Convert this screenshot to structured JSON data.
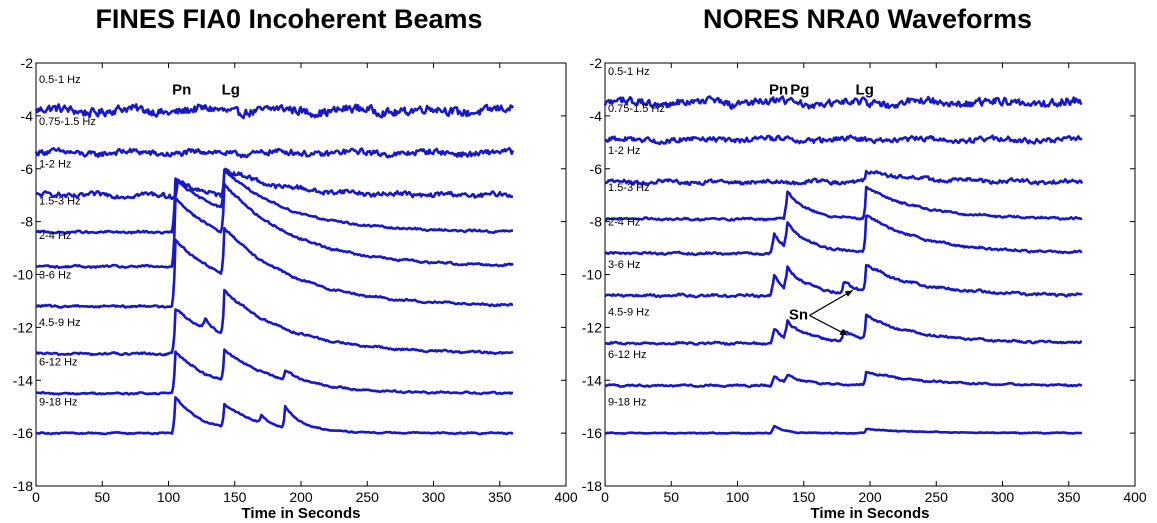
{
  "chart_data": [
    {
      "type": "line",
      "title": "FINES FIA0 Incoherent Beams",
      "xlabel": "Time in Seconds",
      "ylabel": "",
      "xlim": [
        0,
        400
      ],
      "ylim": [
        -18,
        -2
      ],
      "xticks": [
        0,
        50,
        100,
        150,
        200,
        250,
        300,
        350,
        400
      ],
      "yticks": [
        -2,
        -4,
        -6,
        -8,
        -10,
        -12,
        -14,
        -16,
        -18
      ],
      "x_end": 360,
      "series": [
        {
          "name": "0.5-1 Hz",
          "baseline": -3.8,
          "noise": 0.22,
          "ripple": 9,
          "bumps": []
        },
        {
          "name": "0.75-1.5 Hz",
          "baseline": -5.4,
          "noise": 0.15,
          "ripple": 9,
          "bumps": []
        },
        {
          "name": "1-2 Hz",
          "baseline": -7.0,
          "noise": 0.12,
          "ripple": 6,
          "bumps": [
            {
              "t": 107,
              "h": 0.6,
              "d": 12
            },
            {
              "t": 142,
              "h": 1.0,
              "d": 40
            }
          ]
        },
        {
          "name": "1.5-3 Hz",
          "baseline": -8.4,
          "noise": 0.05,
          "ripple": 4,
          "bumps": [
            {
              "t": 105,
              "h": 2.0,
              "d": 45
            },
            {
              "t": 142,
              "h": 1.5,
              "d": 50
            }
          ]
        },
        {
          "name": "2-4 Hz",
          "baseline": -9.7,
          "noise": 0.05,
          "ripple": 4,
          "bumps": [
            {
              "t": 105,
              "h": 2.6,
              "d": 50
            },
            {
              "t": 142,
              "h": 1.9,
              "d": 55
            }
          ]
        },
        {
          "name": "3-6 Hz",
          "baseline": -11.2,
          "noise": 0.05,
          "ripple": 4,
          "bumps": [
            {
              "t": 105,
              "h": 2.5,
              "d": 50
            },
            {
              "t": 142,
              "h": 1.8,
              "d": 55
            }
          ]
        },
        {
          "name": "4.5-9 Hz",
          "baseline": -13.0,
          "noise": 0.05,
          "ripple": 4,
          "bumps": [
            {
              "t": 105,
              "h": 1.7,
              "d": 40
            },
            {
              "t": 127,
              "h": 0.4,
              "d": 6
            },
            {
              "t": 142,
              "h": 1.7,
              "d": 55
            }
          ]
        },
        {
          "name": "6-12 Hz",
          "baseline": -14.5,
          "noise": 0.04,
          "ripple": 3,
          "bumps": [
            {
              "t": 105,
              "h": 1.6,
              "d": 30
            },
            {
              "t": 142,
              "h": 1.2,
              "d": 45
            },
            {
              "t": 188,
              "h": 0.35,
              "d": 15
            }
          ]
        },
        {
          "name": "9-18 Hz",
          "baseline": -16.0,
          "noise": 0.03,
          "ripple": 3,
          "bumps": [
            {
              "t": 105,
              "h": 1.4,
              "d": 20
            },
            {
              "t": 142,
              "h": 0.9,
              "d": 30
            },
            {
              "t": 170,
              "h": 0.3,
              "d": 5
            },
            {
              "t": 188,
              "h": 0.8,
              "d": 12
            }
          ]
        }
      ],
      "annotations": [
        {
          "text": "Pn",
          "x": 110,
          "y": -3.2
        },
        {
          "text": "Lg",
          "x": 147,
          "y": -3.2
        }
      ]
    },
    {
      "type": "line",
      "title": "NORES NRA0 Waveforms",
      "xlabel": "Time in Seconds",
      "ylabel": "",
      "xlim": [
        0,
        400
      ],
      "ylim": [
        -18,
        -2
      ],
      "xticks": [
        0,
        50,
        100,
        150,
        200,
        250,
        300,
        350,
        400
      ],
      "yticks": [
        -2,
        -4,
        -6,
        -8,
        -10,
        -12,
        -14,
        -16,
        -18
      ],
      "x_end": 360,
      "series": [
        {
          "name": "0.5-1 Hz",
          "baseline": -3.5,
          "noise": 0.2,
          "ripple": 9,
          "bumps": []
        },
        {
          "name": "0.75-1.5 Hz",
          "baseline": -4.9,
          "noise": 0.13,
          "ripple": 9,
          "bumps": []
        },
        {
          "name": "1-2 Hz",
          "baseline": -6.5,
          "noise": 0.1,
          "ripple": 6,
          "bumps": [
            {
              "t": 197,
              "h": 0.4,
              "d": 40
            }
          ]
        },
        {
          "name": "1.5-3 Hz",
          "baseline": -7.9,
          "noise": 0.05,
          "ripple": 4,
          "bumps": [
            {
              "t": 137,
              "h": 1.1,
              "d": 15
            },
            {
              "t": 197,
              "h": 1.2,
              "d": 40
            }
          ]
        },
        {
          "name": "2-4 Hz",
          "baseline": -9.2,
          "noise": 0.05,
          "ripple": 4,
          "bumps": [
            {
              "t": 127,
              "h": 0.8,
              "d": 8
            },
            {
              "t": 137,
              "h": 1.0,
              "d": 20
            },
            {
              "t": 197,
              "h": 1.4,
              "d": 45
            }
          ]
        },
        {
          "name": "3-6 Hz",
          "baseline": -10.8,
          "noise": 0.06,
          "ripple": 4,
          "bumps": [
            {
              "t": 127,
              "h": 0.8,
              "d": 8
            },
            {
              "t": 137,
              "h": 0.9,
              "d": 20
            },
            {
              "t": 180,
              "h": 0.4,
              "d": 15
            },
            {
              "t": 197,
              "h": 1.0,
              "d": 45
            }
          ]
        },
        {
          "name": "4.5-9 Hz",
          "baseline": -12.6,
          "noise": 0.05,
          "ripple": 4,
          "bumps": [
            {
              "t": 127,
              "h": 0.6,
              "d": 8
            },
            {
              "t": 137,
              "h": 0.7,
              "d": 20
            },
            {
              "t": 180,
              "h": 0.4,
              "d": 15
            },
            {
              "t": 197,
              "h": 0.9,
              "d": 45
            }
          ]
        },
        {
          "name": "6-12 Hz",
          "baseline": -14.2,
          "noise": 0.04,
          "ripple": 3,
          "bumps": [
            {
              "t": 127,
              "h": 0.4,
              "d": 8
            },
            {
              "t": 137,
              "h": 0.3,
              "d": 20
            },
            {
              "t": 197,
              "h": 0.5,
              "d": 45
            }
          ]
        },
        {
          "name": "9-18 Hz",
          "baseline": -16.0,
          "noise": 0.02,
          "ripple": 3,
          "bumps": [
            {
              "t": 127,
              "h": 0.3,
              "d": 8
            },
            {
              "t": 197,
              "h": 0.15,
              "d": 40
            }
          ]
        }
      ],
      "annotations": [
        {
          "text": "Pn",
          "x": 131,
          "y": -3.2
        },
        {
          "text": "Pg",
          "x": 147,
          "y": -3.2
        },
        {
          "text": "Lg",
          "x": 196,
          "y": -3.2
        },
        {
          "text": "Sn",
          "x": 146,
          "y": -11.7,
          "arrows": [
            [
              187,
              -10.6
            ],
            [
              183,
              -12.3
            ]
          ]
        }
      ]
    }
  ],
  "colors": {
    "trace": "#1818c8",
    "axis": "#000000",
    "text": "#000000"
  }
}
